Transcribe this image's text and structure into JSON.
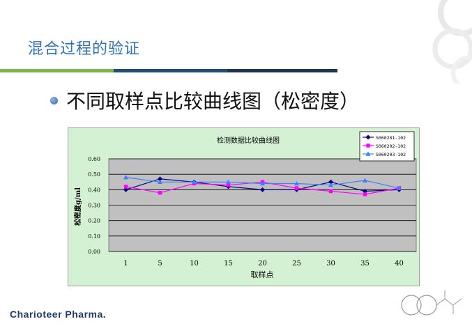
{
  "slide": {
    "title": "混合过程的验证",
    "bullet": "不同取样点比较曲线图（松密度）",
    "brand": "Charioteer Pharma."
  },
  "colors": {
    "title": "#2e74b5",
    "bar_green": "#7ab648",
    "bar_blue": "#1f4e79",
    "chart_bg": "#d4f1d4",
    "plot_bg": "#c0c0c0"
  },
  "chart_data": {
    "type": "line",
    "title": "检测数据比较曲线图",
    "xlabel": "取样点",
    "ylabel": "松密度g/ml",
    "categories": [
      "1",
      "5",
      "10",
      "15",
      "20",
      "25",
      "30",
      "35",
      "40"
    ],
    "yticks": [
      "0.00",
      "0.10",
      "0.20",
      "0.30",
      "0.40",
      "0.50",
      "0.60"
    ],
    "ylim": [
      0,
      0.6
    ],
    "grid": true,
    "legend_position": "top-right",
    "series": [
      {
        "name": "S060201-102",
        "color": "#000080",
        "marker": "diamond",
        "values": [
          0.4,
          0.47,
          0.45,
          0.42,
          0.4,
          0.4,
          0.45,
          0.39,
          0.4
        ]
      },
      {
        "name": "S060202-102",
        "color": "#ff00ff",
        "marker": "square",
        "values": [
          0.42,
          0.38,
          0.44,
          0.43,
          0.45,
          0.41,
          0.39,
          0.37,
          0.41
        ]
      },
      {
        "name": "S060203-102",
        "color": "#3f7fff",
        "marker": "triangle",
        "values": [
          0.48,
          0.45,
          0.45,
          0.45,
          0.44,
          0.44,
          0.43,
          0.46,
          0.41
        ]
      }
    ]
  }
}
